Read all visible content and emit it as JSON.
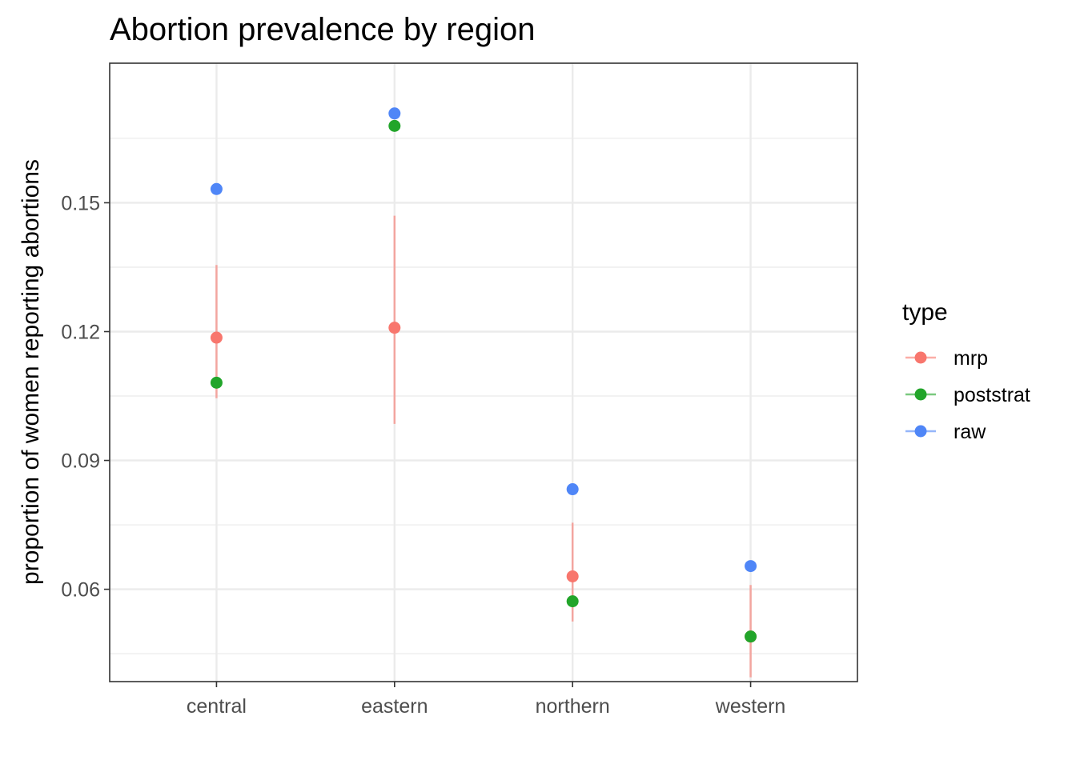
{
  "chart_data": {
    "type": "scatter",
    "title": "Abortion prevalence by region",
    "xlabel": "",
    "ylabel": "proportion of women reporting abortions",
    "categories": [
      "central",
      "eastern",
      "northern",
      "western"
    ],
    "y_ticks": [
      0.06,
      0.09,
      0.12,
      0.15
    ],
    "y_tick_labels": [
      "0.06",
      "0.09",
      "0.12",
      "0.15"
    ],
    "ylim": [
      0.0385,
      0.1825
    ],
    "grid": true,
    "legend": {
      "title": "type",
      "position": "right"
    },
    "series": [
      {
        "name": "mrp",
        "color": "#F8766D",
        "values": [
          0.1186,
          0.1209,
          0.063,
          0.049
        ],
        "interval_low": [
          0.1045,
          0.0985,
          0.0525,
          0.0395
        ],
        "interval_high": [
          0.1355,
          0.147,
          0.0755,
          0.061
        ]
      },
      {
        "name": "poststrat",
        "color": "#22A52A",
        "values": [
          0.1081,
          0.1679,
          0.0572,
          0.049
        ]
      },
      {
        "name": "raw",
        "color": "#4F86F7",
        "values": [
          0.1532,
          0.1708,
          0.0833,
          0.0654
        ]
      }
    ]
  }
}
